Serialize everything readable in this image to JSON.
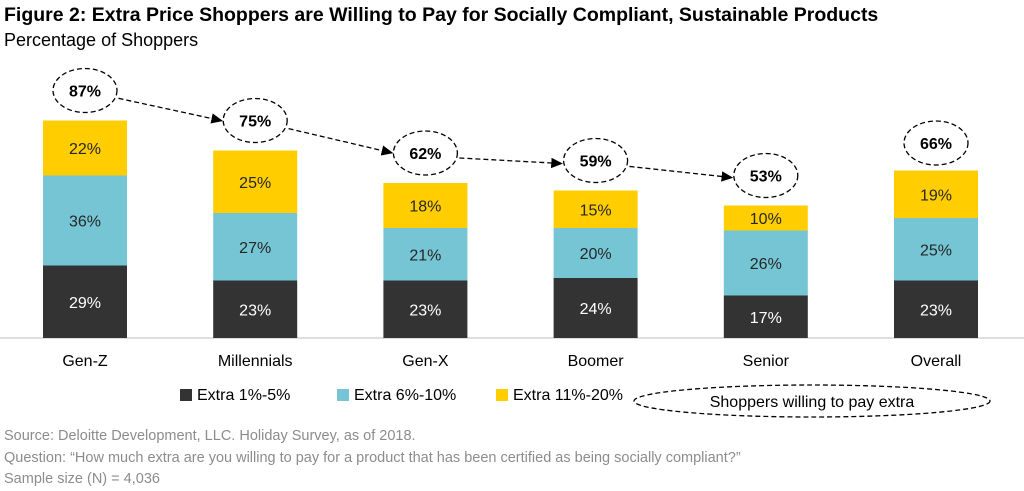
{
  "title": "Figure 2: Extra Price Shoppers are Willing to Pay for Socially Compliant, Sustainable Products",
  "subtitle": "Percentage of Shoppers",
  "footer": {
    "source": "Source: Deloitte Development, LLC. Holiday Survey, as of 2018.",
    "question": "Question: “How much extra are you willing to pay for a product that has been certified as being socially compliant?”",
    "sample": "Sample size (N) = 4,036"
  },
  "colors": {
    "Extra 1%-5%": "#333333",
    "Extra 6%-10%": "#76c5d4",
    "Extra 11%-20%": "#ffcd00",
    "total_label": "#000000"
  },
  "chart_data": {
    "type": "bar",
    "stacked": true,
    "categories": [
      "Gen-Z",
      "Millennials",
      "Gen-X",
      "Boomer",
      "Senior",
      "Overall"
    ],
    "series": [
      {
        "name": "Extra 1%-5%",
        "values": [
          29,
          23,
          23,
          24,
          17,
          23
        ],
        "labels": [
          "29%",
          "23%",
          "23%",
          "24%",
          "17%",
          "23%"
        ]
      },
      {
        "name": "Extra 6%-10%",
        "values": [
          36,
          27,
          21,
          20,
          26,
          25
        ],
        "labels": [
          "36%",
          "27%",
          "21%",
          "20%",
          "26%",
          "25%"
        ]
      },
      {
        "name": "Extra 11%-20%",
        "values": [
          22,
          25,
          18,
          15,
          10,
          19
        ],
        "labels": [
          "22%",
          "25%",
          "18%",
          "15%",
          "10%",
          "19%"
        ]
      }
    ],
    "totals": {
      "name": "Shoppers willing to pay extra",
      "values": [
        87,
        75,
        62,
        59,
        53,
        66
      ],
      "labels": [
        "87%",
        "75%",
        "62%",
        "59%",
        "53%",
        "66%"
      ],
      "trend_arrow_categories": [
        "Gen-Z",
        "Millennials",
        "Gen-X",
        "Boomer",
        "Senior"
      ]
    },
    "ylim": [
      0,
      100
    ],
    "grid": false,
    "legend": "bottom"
  }
}
